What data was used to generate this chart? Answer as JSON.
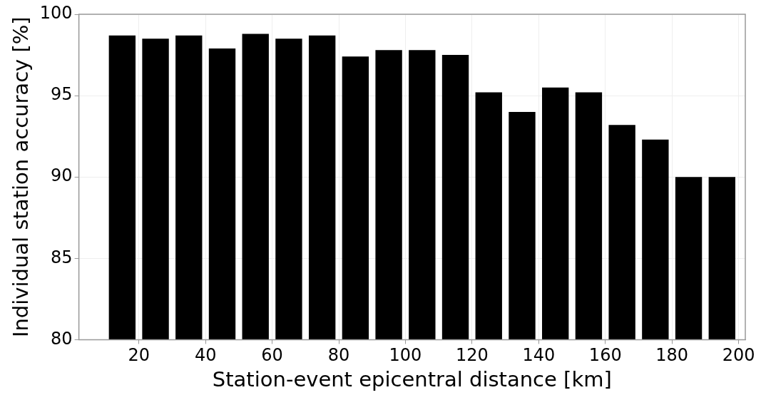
{
  "chart_data": {
    "type": "bar",
    "xlabel": "Station-event epicentral distance [km]",
    "ylabel": "Individual station accuracy [%]",
    "x": [
      15,
      25,
      35,
      45,
      55,
      65,
      75,
      85,
      95,
      105,
      115,
      125,
      135,
      145,
      155,
      165,
      175,
      185,
      195
    ],
    "values": [
      98.7,
      98.5,
      98.7,
      97.9,
      98.8,
      98.5,
      98.7,
      97.4,
      97.8,
      97.8,
      97.5,
      95.2,
      94.0,
      95.5,
      95.2,
      93.2,
      92.3,
      90.0,
      90.0
    ],
    "color": "#000000",
    "xlim": [
      2,
      202
    ],
    "xticks": [
      20,
      40,
      60,
      80,
      100,
      120,
      140,
      160,
      180,
      200
    ],
    "ylim": [
      80,
      100
    ],
    "yticks": [
      80,
      85,
      90,
      95,
      100
    ],
    "grid": true,
    "legend": false
  }
}
